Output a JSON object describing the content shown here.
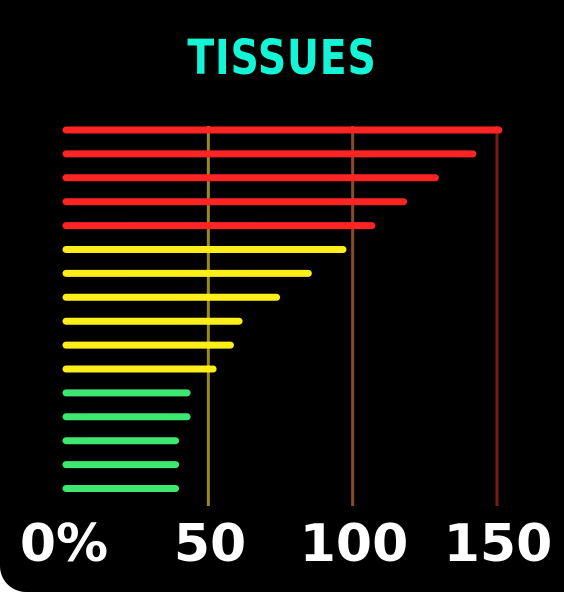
{
  "colors": {
    "background": "#000000",
    "title": "#14f5d6",
    "high": "#ff2424",
    "mid": "#ffee1a",
    "low": "#3ee870",
    "gridline_50": "#9a8a1a",
    "gridline_100": "#8a4a2a",
    "gridline_150": "#7a1a14",
    "tick_text": "#ffffff"
  },
  "chart_data": {
    "type": "bar",
    "orientation": "horizontal",
    "title": "TISSUES",
    "xlim": [
      0,
      150
    ],
    "ticks": [
      {
        "value": 0,
        "label": "0%"
      },
      {
        "value": 50,
        "label": "50"
      },
      {
        "value": 100,
        "label": "100"
      },
      {
        "value": 150,
        "label": "150"
      }
    ],
    "gridlines": [
      50,
      100,
      150
    ],
    "values": [
      151,
      142,
      129,
      118,
      107,
      97,
      85,
      74,
      61,
      58,
      52,
      43,
      43,
      39,
      39,
      39
    ],
    "bar_colors": [
      "high",
      "high",
      "high",
      "high",
      "high",
      "mid",
      "mid",
      "mid",
      "mid",
      "mid",
      "mid",
      "low",
      "low",
      "low",
      "low",
      "low"
    ]
  }
}
